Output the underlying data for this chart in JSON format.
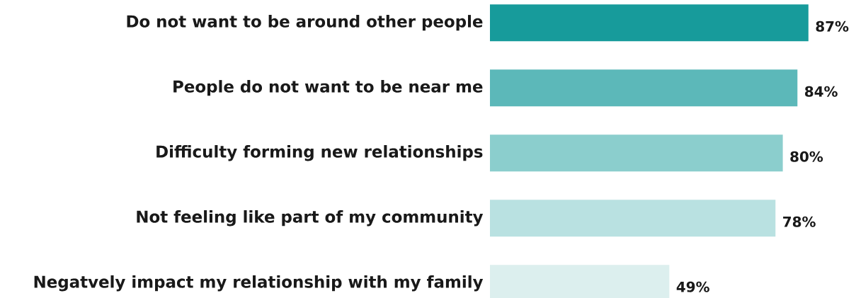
{
  "chart_data": {
    "type": "bar",
    "orientation": "horizontal",
    "categories": [
      "Do not want to be around other people",
      "People do not want to be near me",
      "Difficulty forming new relationships",
      "Not feeling like part of my community",
      "Negatvely impact my relationship with my family"
    ],
    "values": [
      87,
      84,
      80,
      78,
      49
    ],
    "colors": [
      "#179b9b",
      "#5cb8b9",
      "#8bcecd",
      "#b9e1e1",
      "#dcefee"
    ],
    "value_labels": [
      "87%",
      "84%",
      "80%",
      "78%",
      "49%"
    ]
  }
}
